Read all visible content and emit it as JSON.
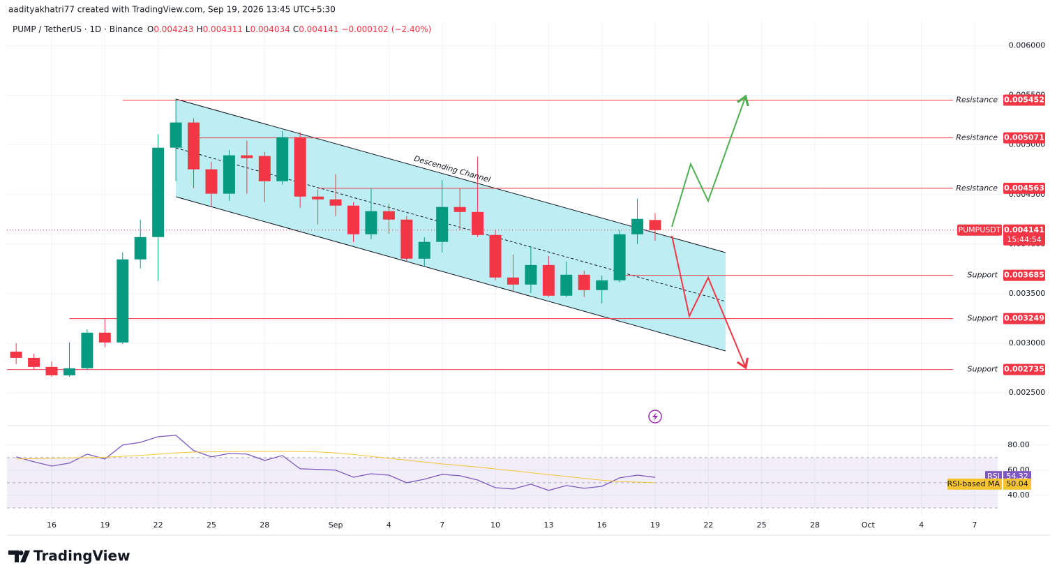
{
  "watermark": "aadityakhatri77 created with TradingView.com, Sep 19, 2026 13:45 UTC+5:30",
  "logo": "TradingView",
  "chart_data": [
    {
      "type": "candlestick",
      "title": "PUMP / TetherUS · 1D · Binance",
      "ohlc_letters": [
        "O",
        "H",
        "L",
        "C"
      ],
      "change": {
        "value": -0.000102,
        "label": "−0.000102"
      },
      "change_pct": {
        "value": -2.4,
        "label": "(−2.40%)"
      },
      "annotations": [
        "Descending Channel"
      ],
      "x": [
        "2026-08-14",
        "2026-08-15",
        "2026-08-16",
        "2026-08-17",
        "2026-08-18",
        "2026-08-19",
        "2026-08-20",
        "2026-08-21",
        "2026-08-22",
        "2026-08-23",
        "2026-08-24",
        "2026-08-25",
        "2026-08-26",
        "2026-08-27",
        "2026-08-28",
        "2026-08-29",
        "2026-08-30",
        "2026-08-31",
        "2026-09-01",
        "2026-09-02",
        "2026-09-03",
        "2026-09-04",
        "2026-09-05",
        "2026-09-06",
        "2026-09-07",
        "2026-09-08",
        "2026-09-09",
        "2026-09-10",
        "2026-09-11",
        "2026-09-12",
        "2026-09-13",
        "2026-09-14",
        "2026-09-15",
        "2026-09-16",
        "2026-09-17",
        "2026-09-18",
        "2026-09-19"
      ],
      "open": [
        0.002916,
        0.002853,
        0.002762,
        0.002677,
        0.002748,
        0.003107,
        0.003008,
        0.003846,
        0.004071,
        0.004972,
        0.005226,
        0.004754,
        0.004508,
        0.004895,
        0.004888,
        0.004634,
        0.005078,
        0.004479,
        0.004451,
        0.004388,
        0.004099,
        0.004332,
        0.004247,
        0.003853,
        0.004022,
        0.004374,
        0.004324,
        0.004092,
        0.003663,
        0.003592,
        0.003789,
        0.00348,
        0.003691,
        0.003536,
        0.003635,
        0.004099,
        0.004243
      ],
      "high": [
        0.003001,
        0.002895,
        0.002818,
        0.003008,
        0.003142,
        0.003254,
        0.003916,
        0.004247,
        0.005106,
        0.005465,
        0.005268,
        0.004831,
        0.004951,
        0.005043,
        0.00493,
        0.005141,
        0.005127,
        0.00455,
        0.004705,
        0.004423,
        0.004564,
        0.004409,
        0.004282,
        0.004071,
        0.004648,
        0.004564,
        0.004881,
        0.004141,
        0.003895,
        0.003979,
        0.003881,
        0.003825,
        0.003733,
        0.003684,
        0.004141,
        0.004458,
        0.004311
      ],
      "low": [
        0.00279,
        0.002733,
        0.002663,
        0.002663,
        0.002733,
        0.002959,
        0.002994,
        0.003754,
        0.003628,
        0.004634,
        0.004564,
        0.004381,
        0.004437,
        0.004508,
        0.004423,
        0.004599,
        0.004367,
        0.004198,
        0.004282,
        0.004022,
        0.00405,
        0.004106,
        0.003825,
        0.003775,
        0.003916,
        0.004141,
        0.004071,
        0.003635,
        0.003522,
        0.003508,
        0.003466,
        0.003466,
        0.003466,
        0.003402,
        0.003614,
        0.004001,
        0.004034
      ],
      "close": [
        0.002853,
        0.002762,
        0.002677,
        0.002748,
        0.003107,
        0.003008,
        0.003846,
        0.004071,
        0.004972,
        0.005226,
        0.004754,
        0.004508,
        0.004895,
        0.004867,
        0.004634,
        0.005078,
        0.004479,
        0.004451,
        0.004388,
        0.004099,
        0.004332,
        0.004247,
        0.003853,
        0.004022,
        0.004374,
        0.004324,
        0.004092,
        0.003663,
        0.003592,
        0.003789,
        0.00348,
        0.003691,
        0.003536,
        0.003635,
        0.004099,
        0.004254,
        0.004141
      ],
      "up_color": "#089981",
      "down_color": "#f23645",
      "symbol": "PUMPUSDT",
      "countdown": "15:44:54",
      "levels": [
        {
          "label": "Resistance",
          "value": 0.005452,
          "start": "2026-08-20"
        },
        {
          "label": "Resistance",
          "value": 0.005071,
          "start": "2026-08-24"
        },
        {
          "label": "Resistance",
          "value": 0.004563,
          "start": "2026-08-31"
        },
        {
          "label": "Support",
          "value": 0.003685,
          "start": "2026-09-17"
        },
        {
          "label": "Support",
          "value": 0.003249,
          "start": "2026-08-17"
        },
        {
          "label": "Support",
          "value": 0.002735,
          "start": "2026-08-13"
        }
      ],
      "level_color": "#f23645",
      "xlim": [
        "2026-08-13",
        "2026-10-09"
      ],
      "xticks": [
        {
          "value": "2026-08-16",
          "label": "16"
        },
        {
          "value": "2026-08-19",
          "label": "19"
        },
        {
          "value": "2026-08-22",
          "label": "22"
        },
        {
          "value": "2026-08-25",
          "label": "25"
        },
        {
          "value": "2026-08-28",
          "label": "28"
        },
        {
          "value": "2026-09-01",
          "label": "Sep"
        },
        {
          "value": "2026-09-04",
          "label": "4"
        },
        {
          "value": "2026-09-07",
          "label": "7"
        },
        {
          "value": "2026-09-10",
          "label": "10"
        },
        {
          "value": "2026-09-13",
          "label": "13"
        },
        {
          "value": "2026-09-16",
          "label": "16"
        },
        {
          "value": "2026-09-19",
          "label": "19"
        },
        {
          "value": "2026-09-22",
          "label": "22"
        },
        {
          "value": "2026-09-25",
          "label": "25"
        },
        {
          "value": "2026-09-28",
          "label": "28"
        },
        {
          "value": "2026-10-01",
          "label": "Oct"
        },
        {
          "value": "2026-10-04",
          "label": "4"
        },
        {
          "value": "2026-10-07",
          "label": "7"
        }
      ],
      "ylim": [
        0.00217,
        0.00625
      ],
      "yticks": [
        {
          "value": 0.0025,
          "label": "0.002500"
        },
        {
          "value": 0.003,
          "label": "0.003000"
        },
        {
          "value": 0.0035,
          "label": "0.003500"
        },
        {
          "value": 0.004,
          "label": "0.004000"
        },
        {
          "value": 0.0045,
          "label": "0.004500"
        },
        {
          "value": 0.005,
          "label": "0.005000"
        },
        {
          "value": 0.0055,
          "label": "0.005500"
        },
        {
          "value": 0.006,
          "label": "0.006000"
        }
      ],
      "grid": true
    },
    {
      "type": "line",
      "series": [
        {
          "name": "RSI",
          "color": "#7e57c2",
          "values": [
            70.6,
            66.7,
            63.3,
            65.6,
            72.8,
            68.9,
            80,
            82.2,
            86.7,
            87.8,
            75.6,
            70.6,
            73.3,
            72.8,
            67.8,
            71.7,
            61.1,
            60.6,
            60,
            54.4,
            57.2,
            56.1,
            50,
            52.8,
            56.7,
            55.6,
            52.2,
            46.1,
            45,
            48.9,
            43.9,
            47.8,
            45.6,
            47.2,
            53.9,
            56.1,
            54.32
          ]
        },
        {
          "name": "RSI-based MA",
          "color": "#f7c431",
          "values": [
            69,
            69.2,
            69.5,
            69.8,
            70,
            70.3,
            71,
            71.8,
            72.8,
            73.8,
            74.4,
            74.6,
            74.8,
            74.9,
            74.9,
            74.9,
            74.8,
            74.5,
            73.8,
            72.5,
            71,
            69.5,
            68,
            66.5,
            65,
            63.8,
            62.5,
            61,
            59.5,
            58,
            56.5,
            55,
            53.5,
            52,
            51,
            50.5,
            50.04
          ]
        }
      ],
      "levels": [
        70,
        50,
        30
      ],
      "ylim": [
        23.3,
        94.4
      ],
      "yticks": [
        {
          "value": 40,
          "label": "40.00"
        },
        {
          "value": 60,
          "label": "60.00"
        },
        {
          "value": 80,
          "label": "80.00"
        }
      ],
      "grid": true
    }
  ]
}
